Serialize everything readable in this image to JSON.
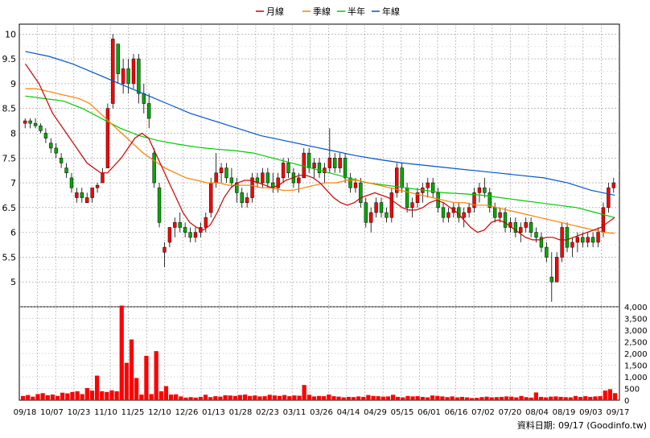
{
  "chart_data": [
    {
      "type": "candlestick",
      "legend_placement": "top-center",
      "series": [
        {
          "name": "月線",
          "color": "#cc0000"
        },
        {
          "name": "季線",
          "color": "#ff8000"
        },
        {
          "name": "半年",
          "color": "#00cc00"
        },
        {
          "name": "年線",
          "color": "#0055cc"
        }
      ],
      "up_color": "#ff0000",
      "down_color": "#00aa00",
      "grid": true,
      "ylim": [
        4.5,
        10.2
      ],
      "y_ticks": [
        "5",
        "5.5",
        "6",
        "6.5",
        "7",
        "7.5",
        "8",
        "8.5",
        "9",
        "9.5",
        "10"
      ],
      "x_ticks": [
        "09/18",
        "10/07",
        "10/23",
        "11/10",
        "11/25",
        "12/10",
        "12/26",
        "01/13",
        "01/28",
        "02/23",
        "03/11",
        "03/26",
        "04/14",
        "04/29",
        "05/15",
        "06/01",
        "06/16",
        "07/02",
        "07/20",
        "08/04",
        "08/19",
        "09/03",
        "09/17"
      ],
      "ohlc": [
        [
          8.2,
          8.3,
          8.1,
          8.25
        ],
        [
          8.25,
          8.3,
          8.1,
          8.2
        ],
        [
          8.2,
          8.3,
          8.1,
          8.15
        ],
        [
          8.15,
          8.2,
          8.0,
          8.05
        ],
        [
          8.0,
          8.1,
          7.8,
          7.9
        ],
        [
          7.8,
          7.9,
          7.6,
          7.7
        ],
        [
          7.7,
          7.8,
          7.5,
          7.6
        ],
        [
          7.5,
          7.6,
          7.3,
          7.4
        ],
        [
          7.3,
          7.4,
          7.1,
          7.2
        ],
        [
          7.1,
          7.2,
          6.8,
          6.9
        ],
        [
          6.7,
          6.9,
          6.6,
          6.8
        ],
        [
          6.8,
          6.9,
          6.6,
          6.7
        ],
        [
          6.6,
          6.8,
          6.6,
          6.7
        ],
        [
          6.7,
          6.9,
          6.6,
          6.9
        ],
        [
          6.9,
          7.0,
          6.8,
          6.95
        ],
        [
          7.0,
          7.3,
          7.0,
          7.2
        ],
        [
          7.3,
          8.6,
          7.3,
          8.5
        ],
        [
          8.6,
          10.0,
          8.5,
          9.9
        ],
        [
          9.8,
          9.8,
          9.0,
          9.2
        ],
        [
          9.0,
          9.5,
          8.8,
          9.3
        ],
        [
          9.3,
          9.5,
          8.8,
          9.0
        ],
        [
          9.0,
          9.6,
          8.9,
          9.5
        ],
        [
          9.5,
          9.6,
          8.6,
          8.8
        ],
        [
          8.8,
          9.0,
          8.4,
          8.6
        ],
        [
          8.6,
          8.8,
          8.1,
          8.3
        ],
        [
          7.6,
          7.7,
          6.9,
          7.0
        ],
        [
          6.9,
          7.0,
          6.1,
          6.2
        ],
        [
          5.6,
          5.8,
          5.3,
          5.7
        ],
        [
          5.8,
          6.1,
          5.7,
          6.1
        ],
        [
          6.1,
          6.3,
          5.9,
          6.2
        ],
        [
          6.2,
          6.4,
          6.0,
          6.1
        ],
        [
          6.1,
          6.2,
          5.9,
          6.0
        ],
        [
          6.0,
          6.1,
          5.8,
          5.9
        ],
        [
          5.9,
          6.1,
          5.8,
          6.0
        ],
        [
          6.0,
          6.2,
          5.9,
          6.1
        ],
        [
          6.1,
          6.4,
          6.0,
          6.3
        ],
        [
          6.4,
          7.1,
          6.3,
          7.0
        ],
        [
          7.0,
          7.6,
          6.9,
          7.2
        ],
        [
          7.2,
          7.4,
          7.0,
          7.3
        ],
        [
          7.3,
          7.4,
          7.0,
          7.1
        ],
        [
          7.1,
          7.3,
          6.9,
          7.0
        ],
        [
          7.0,
          7.1,
          6.6,
          6.8
        ],
        [
          6.8,
          6.9,
          6.5,
          6.6
        ],
        [
          6.6,
          6.8,
          6.5,
          6.7
        ],
        [
          6.7,
          7.2,
          6.6,
          7.1
        ],
        [
          7.1,
          7.2,
          6.9,
          7.0
        ],
        [
          7.0,
          7.3,
          6.9,
          7.2
        ],
        [
          7.2,
          7.3,
          6.9,
          7.0
        ],
        [
          7.0,
          7.2,
          6.8,
          6.9
        ],
        [
          6.9,
          7.2,
          6.8,
          7.1
        ],
        [
          7.1,
          7.5,
          7.0,
          7.4
        ],
        [
          7.4,
          7.5,
          7.1,
          7.2
        ],
        [
          7.2,
          7.3,
          6.9,
          7.0
        ],
        [
          7.0,
          7.2,
          6.8,
          7.1
        ],
        [
          7.1,
          7.7,
          7.1,
          7.6
        ],
        [
          7.6,
          7.7,
          7.2,
          7.3
        ],
        [
          7.3,
          7.5,
          7.1,
          7.4
        ],
        [
          7.4,
          7.5,
          7.1,
          7.2
        ],
        [
          7.2,
          7.4,
          7.0,
          7.3
        ],
        [
          7.3,
          8.1,
          7.2,
          7.5
        ],
        [
          7.5,
          7.6,
          7.2,
          7.3
        ],
        [
          7.3,
          7.6,
          7.2,
          7.5
        ],
        [
          7.5,
          7.6,
          7.0,
          7.1
        ],
        [
          7.1,
          7.2,
          6.8,
          6.9
        ],
        [
          6.9,
          7.1,
          6.8,
          7.0
        ],
        [
          7.0,
          7.1,
          6.5,
          6.6
        ],
        [
          6.6,
          6.7,
          6.1,
          6.2
        ],
        [
          6.2,
          6.5,
          6.0,
          6.4
        ],
        [
          6.4,
          6.7,
          6.3,
          6.6
        ],
        [
          6.6,
          6.7,
          6.3,
          6.4
        ],
        [
          6.4,
          6.5,
          6.2,
          6.3
        ],
        [
          6.3,
          6.9,
          6.2,
          6.8
        ],
        [
          6.8,
          7.4,
          6.7,
          7.3
        ],
        [
          7.3,
          7.4,
          6.8,
          6.9
        ],
        [
          6.9,
          7.0,
          6.4,
          6.5
        ],
        [
          6.5,
          6.7,
          6.3,
          6.6
        ],
        [
          6.6,
          6.9,
          6.5,
          6.8
        ],
        [
          6.8,
          7.0,
          6.6,
          6.9
        ],
        [
          6.9,
          7.1,
          6.7,
          7.0
        ],
        [
          7.0,
          7.1,
          6.7,
          6.8
        ],
        [
          6.8,
          6.9,
          6.4,
          6.5
        ],
        [
          6.5,
          6.6,
          6.2,
          6.3
        ],
        [
          6.3,
          6.5,
          6.2,
          6.4
        ],
        [
          6.4,
          6.6,
          6.3,
          6.5
        ],
        [
          6.5,
          6.6,
          6.2,
          6.3
        ],
        [
          6.3,
          6.5,
          6.1,
          6.4
        ],
        [
          6.4,
          6.6,
          6.3,
          6.5
        ],
        [
          6.5,
          6.9,
          6.4,
          6.8
        ],
        [
          6.8,
          7.0,
          6.6,
          6.9
        ],
        [
          6.9,
          7.1,
          6.7,
          6.8
        ],
        [
          6.8,
          6.9,
          6.4,
          6.5
        ],
        [
          6.5,
          6.6,
          6.2,
          6.3
        ],
        [
          6.3,
          6.5,
          6.2,
          6.4
        ],
        [
          6.4,
          6.5,
          6.0,
          6.1
        ],
        [
          6.1,
          6.3,
          6.0,
          6.2
        ],
        [
          6.2,
          6.3,
          5.9,
          6.0
        ],
        [
          6.0,
          6.2,
          5.8,
          6.1
        ],
        [
          6.1,
          6.3,
          6.0,
          6.2
        ],
        [
          6.2,
          6.3,
          5.9,
          6.0
        ],
        [
          6.0,
          6.1,
          5.8,
          5.9
        ],
        [
          5.9,
          6.0,
          5.6,
          5.7
        ],
        [
          5.7,
          5.8,
          5.4,
          5.5
        ],
        [
          5.1,
          5.6,
          4.6,
          5.0
        ],
        [
          5.0,
          5.6,
          5.0,
          5.5
        ],
        [
          5.5,
          6.2,
          5.4,
          6.1
        ],
        [
          6.1,
          6.2,
          5.6,
          5.7
        ],
        [
          5.7,
          5.9,
          5.5,
          5.8
        ],
        [
          5.8,
          6.0,
          5.6,
          5.9
        ],
        [
          5.9,
          6.0,
          5.7,
          5.8
        ],
        [
          5.8,
          6.0,
          5.7,
          5.9
        ],
        [
          5.9,
          6.0,
          5.7,
          5.8
        ],
        [
          5.8,
          6.1,
          5.7,
          6.0
        ],
        [
          6.0,
          6.6,
          5.9,
          6.5
        ],
        [
          6.5,
          7.0,
          6.4,
          6.9
        ],
        [
          6.9,
          7.1,
          6.8,
          7.0
        ]
      ],
      "ma_month": [
        9.4,
        9.2,
        9.0,
        8.7,
        8.4,
        8.2,
        8.0,
        7.8,
        7.6,
        7.4,
        7.3,
        7.2,
        7.2,
        7.35,
        7.5,
        7.7,
        7.9,
        8.0,
        7.9,
        7.6,
        7.3,
        7.0,
        6.7,
        6.4,
        6.2,
        6.1,
        6.05,
        6.15,
        6.4,
        6.7,
        6.9,
        7.0,
        7.05,
        7.05,
        7.0,
        6.95,
        6.9,
        6.95,
        7.05,
        7.1,
        7.15,
        7.15,
        7.1,
        7.0,
        6.85,
        6.7,
        6.6,
        6.55,
        6.6,
        6.7,
        6.75,
        6.8,
        6.75,
        6.7,
        6.6,
        6.5,
        6.45,
        6.45,
        6.5,
        6.6,
        6.65,
        6.6,
        6.5,
        6.4,
        6.25,
        6.1,
        6.0,
        6.05,
        6.2,
        6.25,
        6.2,
        6.1,
        6.0,
        5.9,
        5.85,
        5.85,
        5.9,
        5.9,
        5.85,
        5.85,
        5.9,
        5.95,
        6.0,
        6.05,
        6.1,
        6.2,
        6.3
      ],
      "ma_quarter": [
        8.9,
        8.9,
        8.85,
        8.8,
        8.75,
        8.7,
        8.6,
        8.4,
        8.2,
        8.0,
        7.8,
        7.6,
        7.45,
        7.3,
        7.2,
        7.1,
        7.05,
        7.0,
        7.0,
        6.95,
        6.95,
        6.95,
        6.9,
        6.9,
        6.85,
        6.85,
        6.9,
        6.95,
        7.0,
        7.0,
        7.05,
        7.05,
        7.0,
        6.95,
        6.9,
        6.85,
        6.8,
        6.75,
        6.7,
        6.65,
        6.6,
        6.6,
        6.55,
        6.55,
        6.5,
        6.45,
        6.4,
        6.35,
        6.3,
        6.25,
        6.2,
        6.15,
        6.1,
        6.05,
        6.0,
        5.98
      ],
      "ma_half": [
        8.75,
        8.7,
        8.65,
        8.5,
        8.3,
        8.1,
        7.95,
        7.85,
        7.78,
        7.72,
        7.68,
        7.65,
        7.6,
        7.5,
        7.4,
        7.3,
        7.2,
        7.1,
        7.0,
        6.95,
        6.9,
        6.85,
        6.8,
        6.78,
        6.75,
        6.7,
        6.65,
        6.6,
        6.55,
        6.5,
        6.4,
        6.3
      ],
      "ma_year": [
        9.65,
        9.55,
        9.4,
        9.2,
        9.0,
        8.8,
        8.6,
        8.4,
        8.25,
        8.1,
        7.95,
        7.85,
        7.75,
        7.65,
        7.55,
        7.47,
        7.4,
        7.35,
        7.3,
        7.25,
        7.2,
        7.15,
        7.1,
        7.0,
        6.85,
        6.75
      ],
      "volume_axis": {
        "ticks": [
          "0",
          "500",
          "1,000",
          "1,500",
          "2,000",
          "2,500",
          "3,000",
          "3,500",
          "4,000"
        ],
        "max": 4000
      },
      "volume": [
        180,
        220,
        150,
        260,
        300,
        210,
        240,
        180,
        320,
        290,
        350,
        380,
        260,
        520,
        410,
        1050,
        380,
        350,
        420,
        380,
        4050,
        1600,
        2600,
        950,
        240,
        1900,
        260,
        2100,
        380,
        600,
        240,
        250,
        160,
        110,
        130,
        110,
        140,
        230,
        130,
        170,
        150,
        210,
        200,
        180,
        220,
        240,
        180,
        200,
        160,
        170,
        230,
        200,
        180,
        220,
        170,
        200,
        190,
        650,
        230,
        160,
        180,
        170,
        240,
        170,
        150,
        120,
        140,
        130,
        160,
        140,
        220,
        180,
        170,
        150,
        160,
        230,
        140,
        120,
        180,
        160,
        170,
        140,
        120,
        200,
        180,
        160,
        130,
        160,
        120,
        140,
        120,
        90,
        100,
        130,
        150,
        120,
        130,
        140,
        160,
        150,
        120,
        180,
        130,
        110,
        330,
        140,
        120,
        150,
        160,
        140,
        130,
        120,
        180,
        140,
        170,
        140,
        160,
        170,
        410,
        470,
        300
      ]
    }
  ],
  "footer": {
    "source": "資料日期: 09/17  (Goodinfo.tw)"
  }
}
